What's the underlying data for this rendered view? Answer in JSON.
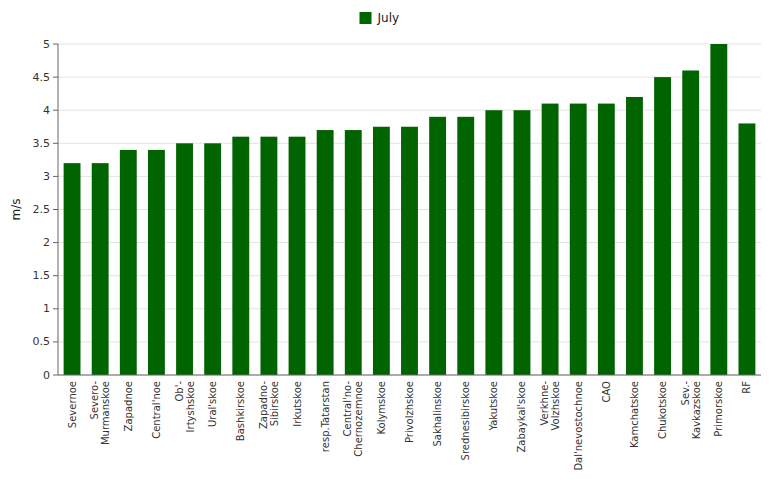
{
  "chart_data": {
    "type": "bar",
    "categories": [
      "Severnoe",
      "Severo-\nMurmanskoe",
      "Zapadnoe",
      "Central'noe",
      "Ob'-\nIrtyshskoe",
      "Ural'skoe",
      "Bashkirskoe",
      "Zapadno-\nSibirskoe",
      "Irkutskoe",
      "resp.Tatarstan",
      "Central'no-\nChernozemnoe",
      "Kolymskoe",
      "Privolzhskoe",
      "Sakhalinskoe",
      "Srednesibirskoe",
      "Yakutskoe",
      "Zabaykal'skoe",
      "Verkhne-\nVolzhskoe",
      "Dal'nevostochnoe",
      "CAO",
      "Kamchatskoe",
      "Chukotskoe",
      "Sev.-\nKavkazskoe",
      "Primorskoe",
      "RF"
    ],
    "series": [
      {
        "name": "July",
        "color": "#006400",
        "values": [
          3.2,
          3.2,
          3.4,
          3.4,
          3.5,
          3.5,
          3.6,
          3.6,
          3.6,
          3.7,
          3.7,
          3.75,
          3.75,
          3.9,
          3.9,
          4.0,
          4.0,
          4.1,
          4.1,
          4.1,
          4.2,
          4.5,
          4.6,
          5.0,
          3.8
        ]
      }
    ],
    "ylabel": "m/s",
    "ylim": [
      0,
      5
    ],
    "yticks": [
      0,
      0.5,
      1,
      1.5,
      2,
      2.5,
      3,
      3.5,
      4,
      4.5,
      5
    ],
    "grid": true,
    "legend": "top"
  }
}
